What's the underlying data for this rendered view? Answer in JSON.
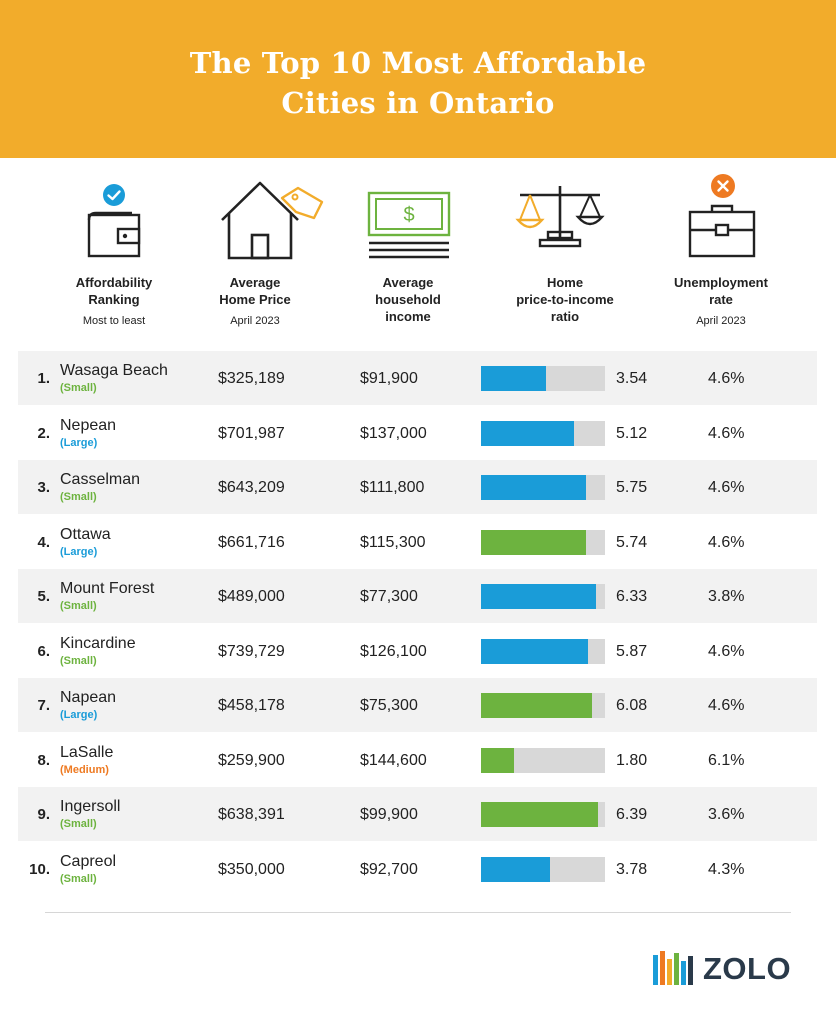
{
  "header": {
    "title_line1": "The Top 10 Most Affordable",
    "title_line2": "Cities in Ontario",
    "bg_color": "#f2ac2b"
  },
  "columns": [
    {
      "line1": "Affordability",
      "line2": "Ranking",
      "line3": "",
      "sub": "Most to least",
      "icon": "wallet-icon",
      "badge": "checkmark-badge-icon"
    },
    {
      "line1": "Average",
      "line2": "Home Price",
      "line3": "",
      "sub": "April 2023",
      "icon": "house-with-tag-icon"
    },
    {
      "line1": "Average",
      "line2": "household",
      "line3": "income",
      "sub": "",
      "icon": "dollar-bill-icon"
    },
    {
      "line1": "Home",
      "line2": "price-to-income",
      "line3": "ratio",
      "sub": "",
      "icon": "balance-scale-icon"
    },
    {
      "line1": "Unemployment",
      "line2": "rate",
      "line3": "",
      "sub": "April 2023",
      "icon": "briefcase-icon",
      "badge": "x-badge-icon"
    }
  ],
  "colors": {
    "small": "#6db33f",
    "large": "#1a9cd8",
    "medium": "#ee7a22",
    "bar_blue": "#1a9cd8",
    "bar_green": "#6db33f",
    "bar_track": "#d8d8d8"
  },
  "rows": [
    {
      "rank": "1.",
      "city": "Wasaga Beach",
      "size": "(Small)",
      "size_key": "small",
      "price": "$325,189",
      "income": "$91,900",
      "ratio": "3.54",
      "ratio_value": 3.54,
      "bar_color": "blue",
      "unemployment": "4.6%"
    },
    {
      "rank": "2.",
      "city": "Nepean",
      "size": "(Large)",
      "size_key": "large",
      "price": "$701,987",
      "income": "$137,000",
      "ratio": "5.12",
      "ratio_value": 5.12,
      "bar_color": "blue",
      "unemployment": "4.6%"
    },
    {
      "rank": "3.",
      "city": "Casselman",
      "size": "(Small)",
      "size_key": "small",
      "price": "$643,209",
      "income": "$111,800",
      "ratio": "5.75",
      "ratio_value": 5.75,
      "bar_color": "blue",
      "unemployment": "4.6%"
    },
    {
      "rank": "4.",
      "city": "Ottawa",
      "size": "(Large)",
      "size_key": "large",
      "price": "$661,716",
      "income": "$115,300",
      "ratio": "5.74",
      "ratio_value": 5.74,
      "bar_color": "green",
      "unemployment": "4.6%"
    },
    {
      "rank": "5.",
      "city": "Mount Forest",
      "size": "(Small)",
      "size_key": "small",
      "price": "$489,000",
      "income": "$77,300",
      "ratio": "6.33",
      "ratio_value": 6.33,
      "bar_color": "blue",
      "unemployment": "3.8%"
    },
    {
      "rank": "6.",
      "city": "Kincardine",
      "size": "(Small)",
      "size_key": "small",
      "price": "$739,729",
      "income": "$126,100",
      "ratio": "5.87",
      "ratio_value": 5.87,
      "bar_color": "blue",
      "unemployment": "4.6%"
    },
    {
      "rank": "7.",
      "city": "Napean",
      "size": "(Large)",
      "size_key": "large",
      "price": "$458,178",
      "income": "$75,300",
      "ratio": "6.08",
      "ratio_value": 6.08,
      "bar_color": "green",
      "unemployment": "4.6%"
    },
    {
      "rank": "8.",
      "city": "LaSalle",
      "size": "(Medium)",
      "size_key": "medium",
      "price": "$259,900",
      "income": "$144,600",
      "ratio": "1.80",
      "ratio_value": 1.8,
      "bar_color": "green",
      "unemployment": "6.1%"
    },
    {
      "rank": "9.",
      "city": "Ingersoll",
      "size": "(Small)",
      "size_key": "small",
      "price": "$638,391",
      "income": "$99,900",
      "ratio": "6.39",
      "ratio_value": 6.39,
      "bar_color": "green",
      "unemployment": "3.6%"
    },
    {
      "rank": "10.",
      "city": "Capreol",
      "size": "(Small)",
      "size_key": "small",
      "price": "$350,000",
      "income": "$92,700",
      "ratio": "3.78",
      "ratio_value": 3.78,
      "bar_color": "blue",
      "unemployment": "4.3%"
    }
  ],
  "ratio_scale_max": 6.8,
  "logo": {
    "text": "ZOLO",
    "icon": "zolo-bars-logo-icon"
  }
}
